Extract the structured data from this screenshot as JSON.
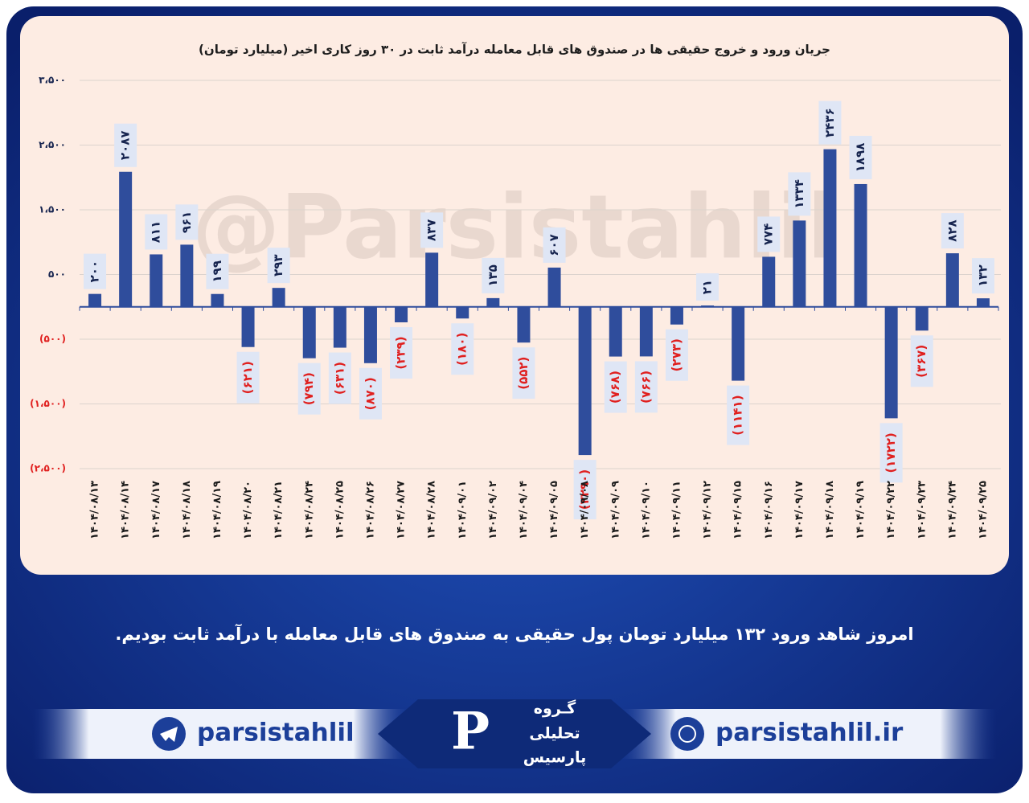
{
  "chart_data": {
    "type": "bar",
    "title": "جریان ورود و خروج حقیقی ها در صندوق های قابل معامله درآمد ثابت در ۳۰ روز کاری اخیر (میلیارد تومان)",
    "watermark": "@Parsistahlil",
    "categories": [
      "۱۴۰۴/۰۸/۱۳",
      "۱۴۰۴/۰۸/۱۴",
      "۱۴۰۴/۰۸/۱۷",
      "۱۴۰۴/۰۸/۱۸",
      "۱۴۰۴/۰۸/۱۹",
      "۱۴۰۴/۰۸/۲۰",
      "۱۴۰۴/۰۸/۲۱",
      "۱۴۰۴/۰۸/۲۴",
      "۱۴۰۴/۰۸/۲۵",
      "۱۴۰۴/۰۸/۲۶",
      "۱۴۰۴/۰۸/۲۷",
      "۱۴۰۴/۰۸/۲۸",
      "۱۴۰۴/۰۹/۰۱",
      "۱۴۰۴/۰۹/۰۲",
      "۱۴۰۴/۰۹/۰۴",
      "۱۴۰۴/۰۹/۰۵",
      "۱۴۰۴/۰۹/۰۸",
      "۱۴۰۴/۰۹/۰۹",
      "۱۴۰۴/۰۹/۱۰",
      "۱۴۰۴/۰۹/۱۱",
      "۱۴۰۴/۰۹/۱۲",
      "۱۴۰۴/۰۹/۱۵",
      "۱۴۰۴/۰۹/۱۶",
      "۱۴۰۴/۰۹/۱۷",
      "۱۴۰۴/۰۹/۱۸",
      "۱۴۰۴/۰۹/۱۹",
      "۱۴۰۴/۰۹/۲۲",
      "۱۴۰۴/۰۹/۲۳",
      "۱۴۰۴/۰۹/۲۴",
      "۱۴۰۴/۰۹/۲۵"
    ],
    "values": [
      200,
      2087,
      811,
      961,
      199,
      -621,
      293,
      -794,
      -631,
      -870,
      -239,
      837,
      -180,
      135,
      -552,
      607,
      -2290,
      -768,
      -766,
      -273,
      21,
      -1141,
      774,
      1334,
      2436,
      1898,
      -1722,
      -367,
      828,
      132
    ],
    "value_labels": [
      "۲۰۰",
      "۲۰۸۷",
      "۸۱۱",
      "۹۶۱",
      "۱۹۹",
      "(۶۲۱)",
      "۲۹۳",
      "(۷۹۴)",
      "(۶۳۱)",
      "(۸۷۰)",
      "(۲۳۹)",
      "۸۳۷",
      "(۱۸۰)",
      "۱۳۵",
      "(۵۵۲)",
      "۶۰۷",
      "(۲۲۹۰)",
      "(۷۶۸)",
      "(۷۶۶)",
      "(۲۷۳)",
      "۲۱",
      "(۱۱۴۱)",
      "۷۷۴",
      "۱۳۳۴",
      "۲۴۳۶",
      "۱۸۹۸",
      "(۱۷۲۲)",
      "(۳۶۷)",
      "۸۲۸",
      "۱۳۲"
    ],
    "color": "#2f4d9c",
    "label_color": "#16244f",
    "negative_label_color": "#e0201f",
    "ylim": [
      -2500,
      3500
    ],
    "yticks": [
      {
        "value": 3500,
        "label": "۳،۵۰۰"
      },
      {
        "value": 2500,
        "label": "۲،۵۰۰"
      },
      {
        "value": 1500,
        "label": "۱،۵۰۰"
      },
      {
        "value": 500,
        "label": "۵۰۰"
      },
      {
        "value": -500,
        "label": "(۵۰۰)"
      },
      {
        "value": -1500,
        "label": "(۱،۵۰۰)"
      },
      {
        "value": -2500,
        "label": "(۲،۵۰۰)"
      }
    ],
    "grid": true
  },
  "summary": "امروز شاهد ورود ۱۳۲ میلیارد تومان پول حقیقی به صندوق های قابل معامله با درآمد ثابت بودیم.",
  "footer": {
    "telegram": "parsistahlil",
    "website": "parsistahlil.ir",
    "logo": [
      "گـروه",
      "تحلیلی",
      "پارسیس"
    ]
  }
}
